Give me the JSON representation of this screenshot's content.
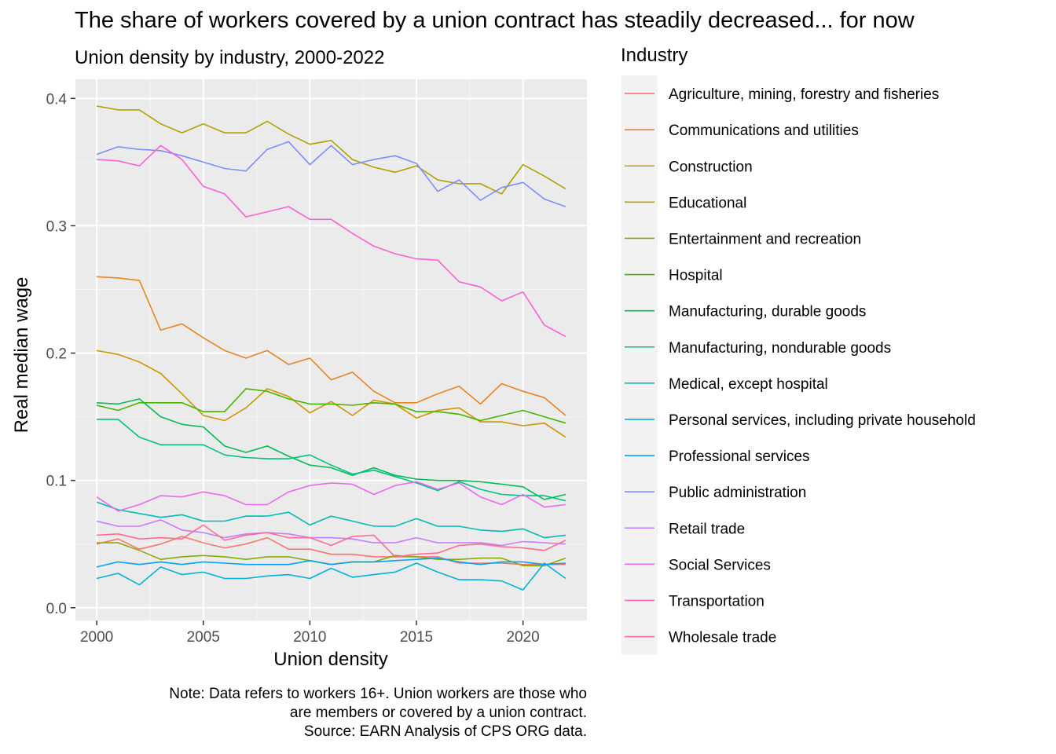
{
  "title": "The share of workers covered by a union contract has steadily decreased... for now",
  "subtitle": "Union density by industry, 2000-2022",
  "caption": [
    "Note: Data refers to workers 16+. Union workers are those who",
    "are members or covered by a union contract.",
    "Source: EARN Analysis of CPS ORG data."
  ],
  "chart_data": {
    "type": "line",
    "xlabel": "Union density",
    "ylabel": "Real median wage",
    "legend_title": "Industry",
    "legend_position": "right",
    "grid": true,
    "xlim": [
      1999,
      2023
    ],
    "ylim": [
      -0.01,
      0.415
    ],
    "x_ticks": [
      2000,
      2005,
      2010,
      2015,
      2020
    ],
    "y_ticks": [
      0.0,
      0.1,
      0.2,
      0.3,
      0.4
    ],
    "y_tick_labels": [
      "0.0",
      "0.1",
      "0.2",
      "0.3",
      "0.4"
    ],
    "x": [
      2000,
      2001,
      2002,
      2003,
      2004,
      2005,
      2006,
      2007,
      2008,
      2009,
      2010,
      2011,
      2012,
      2013,
      2014,
      2015,
      2016,
      2017,
      2018,
      2019,
      2020,
      2021,
      2022
    ],
    "series": [
      {
        "name": "Agriculture, mining, forestry and fisheries",
        "color": "#F8766D",
        "values": [
          0.05,
          0.054,
          0.046,
          0.05,
          0.056,
          0.051,
          0.047,
          0.05,
          0.055,
          0.046,
          0.046,
          0.042,
          0.042,
          0.04,
          0.04,
          0.04,
          0.04,
          0.035,
          0.035,
          0.035,
          0.034,
          0.034,
          0.034
        ]
      },
      {
        "name": "Communications and utilities",
        "color": "#E7851E",
        "values": [
          0.26,
          0.259,
          0.257,
          0.218,
          0.223,
          0.212,
          0.202,
          0.196,
          0.202,
          0.191,
          0.196,
          0.179,
          0.185,
          0.17,
          0.161,
          0.161,
          0.168,
          0.174,
          0.16,
          0.176,
          0.17,
          0.165,
          0.151
        ]
      },
      {
        "name": "Construction",
        "color": "#D09400",
        "values": [
          0.202,
          0.199,
          0.193,
          0.184,
          0.168,
          0.151,
          0.147,
          0.157,
          0.172,
          0.166,
          0.153,
          0.162,
          0.151,
          0.163,
          0.16,
          0.149,
          0.155,
          0.157,
          0.146,
          0.146,
          0.143,
          0.145,
          0.134
        ]
      },
      {
        "name": "Educational",
        "color": "#B2A100",
        "values": [
          0.394,
          0.391,
          0.391,
          0.38,
          0.373,
          0.38,
          0.373,
          0.373,
          0.382,
          0.372,
          0.364,
          0.367,
          0.352,
          0.346,
          0.342,
          0.347,
          0.336,
          0.333,
          0.333,
          0.325,
          0.348,
          0.339,
          0.329
        ]
      },
      {
        "name": "Entertainment and recreation",
        "color": "#89AC00",
        "values": [
          0.051,
          0.051,
          0.045,
          0.038,
          0.04,
          0.041,
          0.04,
          0.038,
          0.04,
          0.04,
          0.037,
          0.034,
          0.036,
          0.036,
          0.041,
          0.04,
          0.038,
          0.038,
          0.039,
          0.039,
          0.033,
          0.033,
          0.039
        ]
      },
      {
        "name": "Hospital",
        "color": "#45B500",
        "values": [
          0.159,
          0.155,
          0.161,
          0.161,
          0.161,
          0.154,
          0.154,
          0.172,
          0.17,
          0.164,
          0.16,
          0.16,
          0.159,
          0.161,
          0.16,
          0.154,
          0.154,
          0.152,
          0.147,
          0.151,
          0.155,
          0.15,
          0.145
        ]
      },
      {
        "name": "Manufacturing, durable goods",
        "color": "#00BC51",
        "values": [
          0.161,
          0.16,
          0.164,
          0.15,
          0.144,
          0.142,
          0.127,
          0.122,
          0.127,
          0.119,
          0.112,
          0.11,
          0.104,
          0.11,
          0.104,
          0.101,
          0.1,
          0.1,
          0.099,
          0.097,
          0.095,
          0.085,
          0.089
        ]
      },
      {
        "name": "Manufacturing, nondurable goods",
        "color": "#00C087",
        "values": [
          0.148,
          0.148,
          0.134,
          0.128,
          0.128,
          0.128,
          0.12,
          0.118,
          0.117,
          0.117,
          0.12,
          0.112,
          0.105,
          0.108,
          0.103,
          0.098,
          0.092,
          0.099,
          0.093,
          0.089,
          0.088,
          0.088,
          0.084
        ]
      },
      {
        "name": "Medical, except hospital",
        "color": "#00BCB5",
        "values": [
          0.083,
          0.077,
          0.074,
          0.071,
          0.073,
          0.068,
          0.068,
          0.072,
          0.072,
          0.075,
          0.065,
          0.072,
          0.068,
          0.064,
          0.064,
          0.07,
          0.064,
          0.064,
          0.061,
          0.06,
          0.062,
          0.055,
          0.057
        ]
      },
      {
        "name": "Personal services, including private household",
        "color": "#00B2D9",
        "values": [
          0.023,
          0.027,
          0.018,
          0.032,
          0.026,
          0.028,
          0.023,
          0.023,
          0.025,
          0.026,
          0.023,
          0.031,
          0.024,
          0.026,
          0.028,
          0.035,
          0.028,
          0.022,
          0.022,
          0.021,
          0.014,
          0.035,
          0.023
        ]
      },
      {
        "name": "Professional services",
        "color": "#00A3F6",
        "values": [
          0.032,
          0.036,
          0.034,
          0.036,
          0.034,
          0.036,
          0.035,
          0.034,
          0.034,
          0.034,
          0.037,
          0.034,
          0.036,
          0.036,
          0.037,
          0.038,
          0.039,
          0.036,
          0.034,
          0.036,
          0.036,
          0.034,
          0.035
        ]
      },
      {
        "name": "Public administration",
        "color": "#7B8EFF",
        "values": [
          0.356,
          0.362,
          0.36,
          0.359,
          0.355,
          0.35,
          0.345,
          0.343,
          0.36,
          0.366,
          0.348,
          0.363,
          0.348,
          0.352,
          0.355,
          0.349,
          0.327,
          0.336,
          0.32,
          0.33,
          0.334,
          0.321,
          0.315
        ]
      },
      {
        "name": "Retail trade",
        "color": "#C77CFF",
        "values": [
          0.068,
          0.064,
          0.064,
          0.069,
          0.061,
          0.059,
          0.055,
          0.058,
          0.059,
          0.058,
          0.055,
          0.055,
          0.054,
          0.051,
          0.051,
          0.055,
          0.051,
          0.051,
          0.051,
          0.049,
          0.052,
          0.051,
          0.05
        ]
      },
      {
        "name": "Social Services",
        "color": "#EA6AF0",
        "values": [
          0.087,
          0.076,
          0.081,
          0.088,
          0.087,
          0.091,
          0.088,
          0.081,
          0.081,
          0.091,
          0.096,
          0.098,
          0.097,
          0.089,
          0.096,
          0.099,
          0.093,
          0.098,
          0.087,
          0.081,
          0.089,
          0.079,
          0.081
        ]
      },
      {
        "name": "Transportation",
        "color": "#FA62D2",
        "values": [
          0.352,
          0.351,
          0.347,
          0.363,
          0.352,
          0.331,
          0.325,
          0.307,
          0.311,
          0.315,
          0.305,
          0.305,
          0.294,
          0.284,
          0.278,
          0.274,
          0.273,
          0.256,
          0.252,
          0.241,
          0.248,
          0.222,
          0.213
        ]
      },
      {
        "name": "Wholesale trade",
        "color": "#FF6C91",
        "values": [
          0.057,
          0.058,
          0.054,
          0.055,
          0.054,
          0.065,
          0.053,
          0.057,
          0.059,
          0.055,
          0.055,
          0.049,
          0.056,
          0.057,
          0.04,
          0.042,
          0.043,
          0.049,
          0.05,
          0.048,
          0.047,
          0.045,
          0.053
        ]
      }
    ]
  }
}
